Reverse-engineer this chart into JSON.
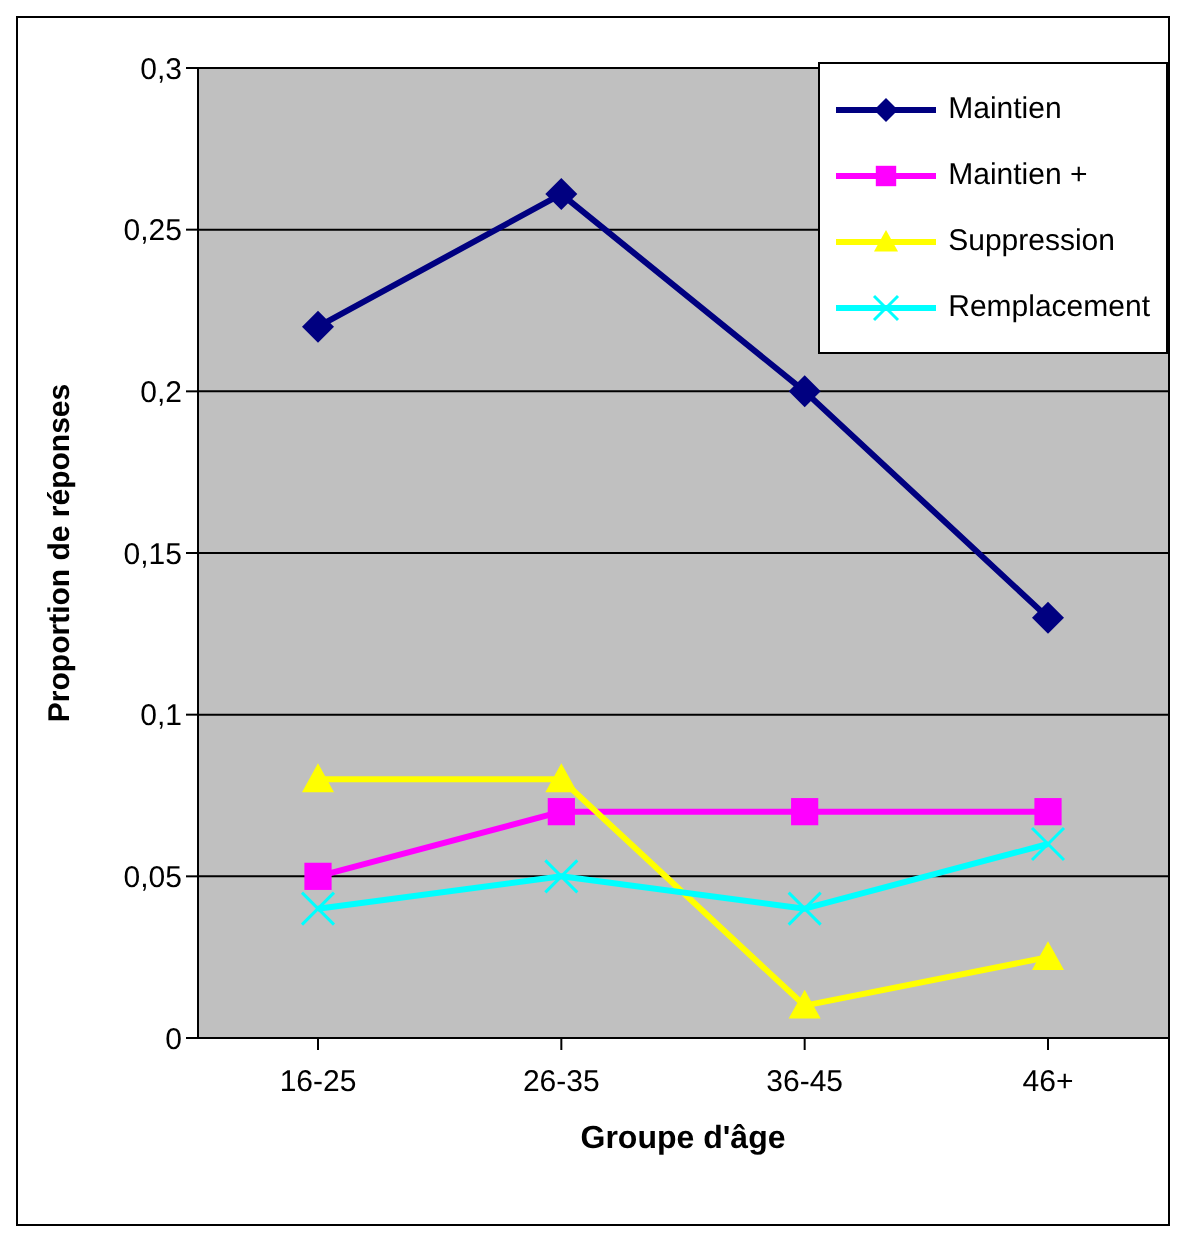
{
  "chart_data": {
    "type": "line",
    "xlabel": "Groupe d'âge",
    "ylabel": "Proportion de réponses",
    "categories": [
      "16-25",
      "26-35",
      "36-45",
      "46+"
    ],
    "series": [
      {
        "name": "Maintien",
        "color": "#000080",
        "marker": "diamond",
        "values": [
          0.22,
          0.261,
          0.2,
          0.13
        ]
      },
      {
        "name": "Maintien +",
        "color": "#ff00ff",
        "marker": "square",
        "values": [
          0.05,
          0.07,
          0.07,
          0.07
        ]
      },
      {
        "name": "Suppression",
        "color": "#ffff00",
        "marker": "triangle",
        "values": [
          0.08,
          0.08,
          0.01,
          0.025
        ]
      },
      {
        "name": "Remplacement",
        "color": "#00ffff",
        "marker": "cross",
        "values": [
          0.04,
          0.05,
          0.04,
          0.06
        ]
      }
    ],
    "ylim": [
      0,
      0.3
    ],
    "yticks": [
      0,
      {
        "value": 0.05,
        "label": "0,05"
      },
      {
        "value": 0.1,
        "label": "0,1"
      },
      {
        "value": 0.15,
        "label": "0,15"
      },
      {
        "value": 0.2,
        "label": "0,2"
      },
      {
        "value": 0.25,
        "label": "0,25"
      },
      {
        "value": 0.3,
        "label": "0,3"
      }
    ],
    "grid": "y",
    "legend": "top right",
    "line_style": "solid"
  }
}
